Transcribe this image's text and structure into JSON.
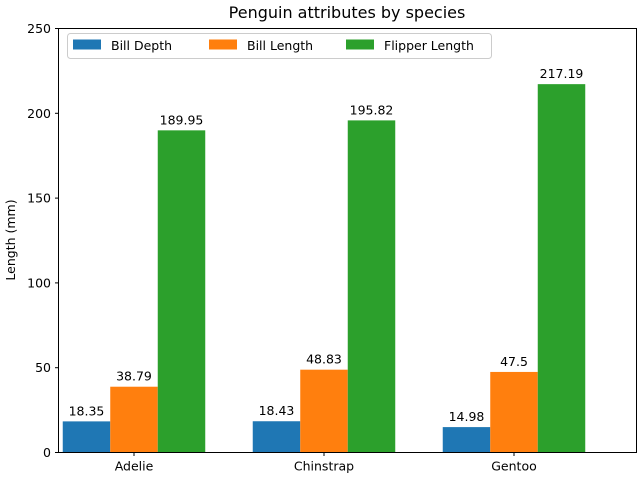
{
  "chart_data": {
    "type": "bar",
    "title": "Penguin attributes by species",
    "xlabel": "",
    "ylabel": "Length (mm)",
    "ylim": [
      0,
      250
    ],
    "yticks": [
      0,
      50,
      100,
      150,
      200,
      250
    ],
    "categories": [
      "Adelie",
      "Chinstrap",
      "Gentoo"
    ],
    "series": [
      {
        "name": "Bill Depth",
        "color": "#1f77b4",
        "values": [
          18.35,
          18.43,
          14.98
        ]
      },
      {
        "name": "Bill Length",
        "color": "#ff7f0e",
        "values": [
          38.79,
          48.83,
          47.5
        ]
      },
      {
        "name": "Flipper Length",
        "color": "#2ca02c",
        "values": [
          189.95,
          195.82,
          217.19
        ]
      }
    ],
    "data_labels": true,
    "grid": false,
    "legend": "top-left, 3 columns"
  }
}
